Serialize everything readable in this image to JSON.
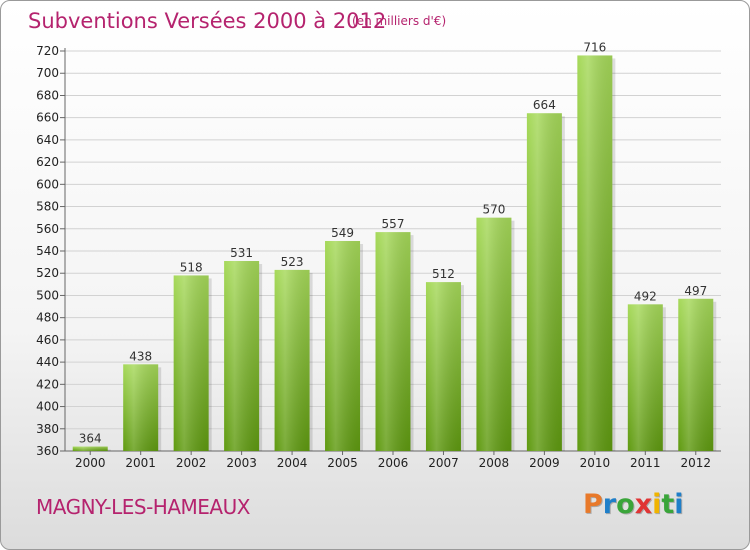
{
  "title": "Subventions Versées 2000 à 2012",
  "subtitle": "(en milliers d'€)",
  "commune": "MAGNY-LES-HAMEAUX",
  "logo": {
    "letters": [
      "P",
      "r",
      "o",
      "x",
      "i",
      "t",
      "i"
    ],
    "colors": [
      "#e8792a",
      "#1f7fc9",
      "#3aa53a",
      "#e03535",
      "#f0b400",
      "#3aa53a",
      "#1f7fc9"
    ]
  },
  "colors": {
    "bar_top": "#a6d95a",
    "bar_bottom": "#5f9a10",
    "title": "#b5236e"
  },
  "chart_data": {
    "type": "bar",
    "categories": [
      "2000",
      "2001",
      "2002",
      "2003",
      "2004",
      "2005",
      "2006",
      "2007",
      "2008",
      "2009",
      "2010",
      "2011",
      "2012"
    ],
    "values": [
      364,
      438,
      518,
      531,
      523,
      549,
      557,
      512,
      570,
      664,
      716,
      492,
      497
    ],
    "ylim": [
      360,
      720
    ],
    "yticks": [
      360,
      380,
      400,
      420,
      440,
      460,
      480,
      500,
      520,
      540,
      560,
      580,
      600,
      620,
      640,
      660,
      680,
      700,
      720
    ],
    "grid": true,
    "title": "Subventions Versées 2000 à 2012",
    "xlabel": "",
    "ylabel": ""
  }
}
